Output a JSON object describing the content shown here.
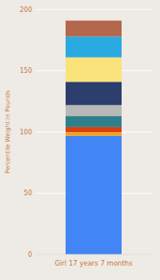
{
  "chart_data": {
    "type": "bar",
    "stacked": true,
    "categories": [
      "Girl 17 years 7 months"
    ],
    "ylabel": "Percentile Weight in Pounds",
    "ylim": [
      0,
      200
    ],
    "yticks": [
      0,
      50,
      100,
      150,
      200
    ],
    "grid": true,
    "series": [
      {
        "color": "#4285f4",
        "values": [
          97
        ]
      },
      {
        "color": "#f5a020",
        "values": [
          3
        ]
      },
      {
        "color": "#d94010",
        "values": [
          4
        ]
      },
      {
        "color": "#2e7f8c",
        "values": [
          9
        ]
      },
      {
        "color": "#b8b8b8",
        "values": [
          9
        ]
      },
      {
        "color": "#2c3e6b",
        "values": [
          19
        ]
      },
      {
        "color": "#f9e27a",
        "values": [
          20
        ]
      },
      {
        "color": "#29abe2",
        "values": [
          17
        ]
      },
      {
        "color": "#b5674d",
        "values": [
          13
        ]
      }
    ]
  }
}
